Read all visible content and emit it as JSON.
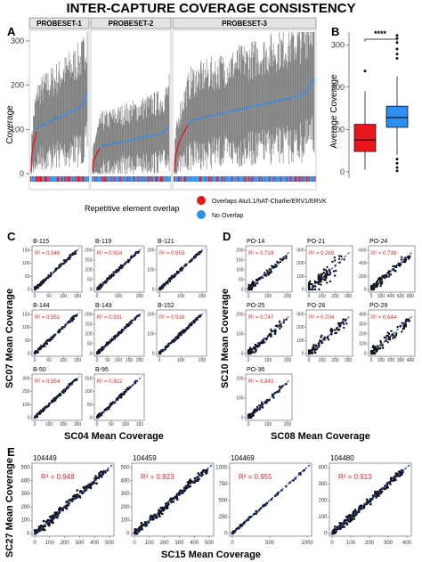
{
  "figure_title": "INTER-CAPTURE COVERAGE CONSISTENCY",
  "panel_letters": {
    "a": "A",
    "b": "B",
    "c": "C",
    "d": "D",
    "e": "E"
  },
  "colors": {
    "red": "#e8171c",
    "blue": "#2f8ff0",
    "gray": "#6e6e6e",
    "strip": "#e3e3e3",
    "dash": "#1a3fbf",
    "point": "#111111",
    "r2": "#d62728"
  },
  "legend": {
    "title": "Repetitive element overlap",
    "items": [
      {
        "label": "Overlaps Alu/L1/hAT-Charlie/ERV1/ERVK",
        "color": "#e8171c"
      },
      {
        "label": "No Overlap",
        "color": "#2f8ff0"
      }
    ]
  },
  "chart_data": [
    {
      "id": "A",
      "type": "line",
      "ylabel": "Coverage",
      "yticks": [
        0,
        100,
        200,
        300
      ],
      "ylim": [
        0,
        320
      ],
      "facets": [
        {
          "name": "PROBESET-1",
          "mean_start": 5,
          "mean_end": 185
        },
        {
          "name": "PROBESET-2",
          "mean_start": 5,
          "mean_end": 110
        },
        {
          "name": "PROBESET-3",
          "mean_start": 5,
          "mean_end": 215
        }
      ]
    },
    {
      "id": "B",
      "type": "box",
      "ylabel": "Average Coverage",
      "yticks": [
        0,
        100,
        200,
        300
      ],
      "ylim": [
        -15,
        330
      ],
      "significance": "****",
      "boxes": [
        {
          "group": "Overlaps",
          "color": "#e8171c",
          "min": 5,
          "q1": 48,
          "median": 75,
          "q3": 112,
          "max": 190,
          "outliers": [
            238
          ]
        },
        {
          "group": "No Overlap",
          "color": "#2f8ff0",
          "min": 40,
          "q1": 105,
          "median": 128,
          "q3": 155,
          "max": 225,
          "outliers": [
            268,
            278,
            290,
            305,
            315,
            322,
            2,
            10,
            20,
            30
          ]
        }
      ]
    },
    {
      "id": "C",
      "type": "scatter",
      "xlabel": "SC04 Mean Coverage",
      "ylabel": "SC07 Mean Coverage",
      "panels": [
        {
          "name": "B-115",
          "r2": "R² = 0.946",
          "xticks": [
            "0",
            "50",
            "100",
            "150"
          ],
          "yticks": [
            "0",
            "50",
            "100",
            "150"
          ]
        },
        {
          "name": "B-119",
          "r2": "R² = 0.924",
          "xticks": [
            "0",
            "100",
            "200"
          ],
          "yticks": [
            "0",
            "50",
            "100",
            "150",
            "200"
          ]
        },
        {
          "name": "B-121",
          "r2": "R² = 0.953",
          "xticks": [
            "0",
            "100",
            "200"
          ],
          "yticks": [
            "0",
            "100",
            "200"
          ]
        },
        {
          "name": "B-144",
          "r2": "R² = 0.952",
          "xticks": [
            "0",
            "50",
            "100",
            "150"
          ],
          "yticks": [
            "0",
            "50",
            "100",
            "150"
          ]
        },
        {
          "name": "B-149",
          "r2": "R² = 0.931",
          "xticks": [
            "0",
            "50",
            "100",
            "150",
            "200"
          ],
          "yticks": [
            "0",
            "50",
            "100",
            "150",
            "200"
          ]
        },
        {
          "name": "B-152",
          "r2": "R² = 0.918",
          "xticks": [
            "0",
            "100",
            "200"
          ],
          "yticks": [
            "0",
            "100",
            "200"
          ]
        },
        {
          "name": "B-50",
          "r2": "R² = 0.954",
          "xticks": [
            "0",
            "100",
            "200",
            "300"
          ],
          "yticks": [
            "0",
            "100",
            "200",
            "300"
          ]
        },
        {
          "name": "B-95",
          "r2": "R² = 0.922",
          "xticks": [
            "0",
            "50",
            "100",
            "150"
          ],
          "yticks": [
            "0",
            "50",
            "100",
            "150"
          ]
        }
      ]
    },
    {
      "id": "D",
      "type": "scatter",
      "xlabel": "SC08 Mean Coverage",
      "ylabel": "SC10 Mean Coverage",
      "panels": [
        {
          "name": "PO-14",
          "r2": "R² = 0.719",
          "xticks": [
            "0",
            "100",
            "200"
          ],
          "yticks": [
            "0",
            "50",
            "100",
            "150",
            "200"
          ]
        },
        {
          "name": "PO-21",
          "r2": "R² = 0.289",
          "xticks": [
            "0",
            "100",
            "200",
            "300"
          ],
          "yticks": [
            "0",
            "100",
            "200",
            "300"
          ]
        },
        {
          "name": "PO-24",
          "r2": "R² = 0.738",
          "xticks": [
            "0",
            "200",
            "400",
            "600",
            "800"
          ],
          "yticks": [
            "0",
            "200",
            "400",
            "600"
          ]
        },
        {
          "name": "PO-25",
          "r2": "R² = 0.747",
          "xticks": [
            "0",
            "100",
            "200"
          ],
          "yticks": [
            "0",
            "100",
            "200"
          ]
        },
        {
          "name": "PO-26",
          "r2": "R² = 0.704",
          "xticks": [
            "0",
            "100",
            "200",
            "300"
          ],
          "yticks": [
            "0",
            "100",
            "200",
            "300"
          ]
        },
        {
          "name": "PO-29",
          "r2": "R² = 0.644",
          "xticks": [
            "0",
            "100",
            "200",
            "300",
            "400"
          ],
          "yticks": [
            "0",
            "100",
            "200",
            "300",
            "400"
          ]
        },
        {
          "name": "PO-36",
          "r2": "R² = 0.843",
          "xticks": [
            "0",
            "100",
            "200"
          ],
          "yticks": [
            "0",
            "100",
            "200"
          ]
        }
      ]
    },
    {
      "id": "E",
      "type": "scatter",
      "xlabel": "SC15 Mean Coverage",
      "ylabel": "SC27 Mean Coverage",
      "panels": [
        {
          "name": "104449",
          "r2": "R² = 0.948",
          "xticks": [
            "0",
            "100",
            "200",
            "300",
            "400",
            "500"
          ],
          "yticks": [
            "0",
            "100",
            "200",
            "300",
            "400",
            "500"
          ]
        },
        {
          "name": "104459",
          "r2": "R² = 0.923",
          "xticks": [
            "0",
            "100",
            "200",
            "300",
            "400",
            "500"
          ],
          "yticks": [
            "0",
            "100",
            "200",
            "300",
            "400",
            "500"
          ]
        },
        {
          "name": "104469",
          "r2": "R² = 0.955",
          "xticks": [
            "0",
            "500",
            "1000"
          ],
          "yticks": [
            "0",
            "250",
            "500",
            "750",
            "1000"
          ]
        },
        {
          "name": "104480",
          "r2": "R² = 0.913",
          "xticks": [
            "0",
            "100",
            "200",
            "300",
            "400"
          ],
          "yticks": [
            "0",
            "100",
            "200",
            "300",
            "400"
          ]
        }
      ]
    }
  ]
}
